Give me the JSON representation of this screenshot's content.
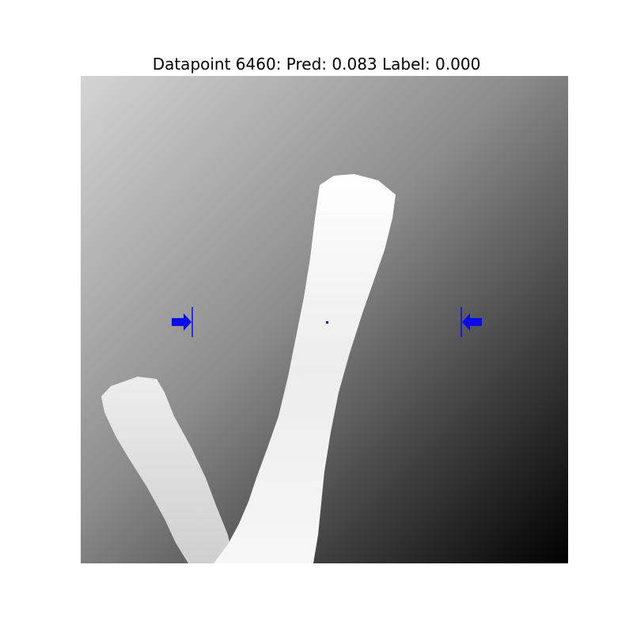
{
  "figure": {
    "title": "Datapoint 6460: Pred: 0.083 Label: 0.000"
  },
  "image": {
    "description_icon": "depth-image-hand",
    "marker_color": "#0a0aeb"
  }
}
